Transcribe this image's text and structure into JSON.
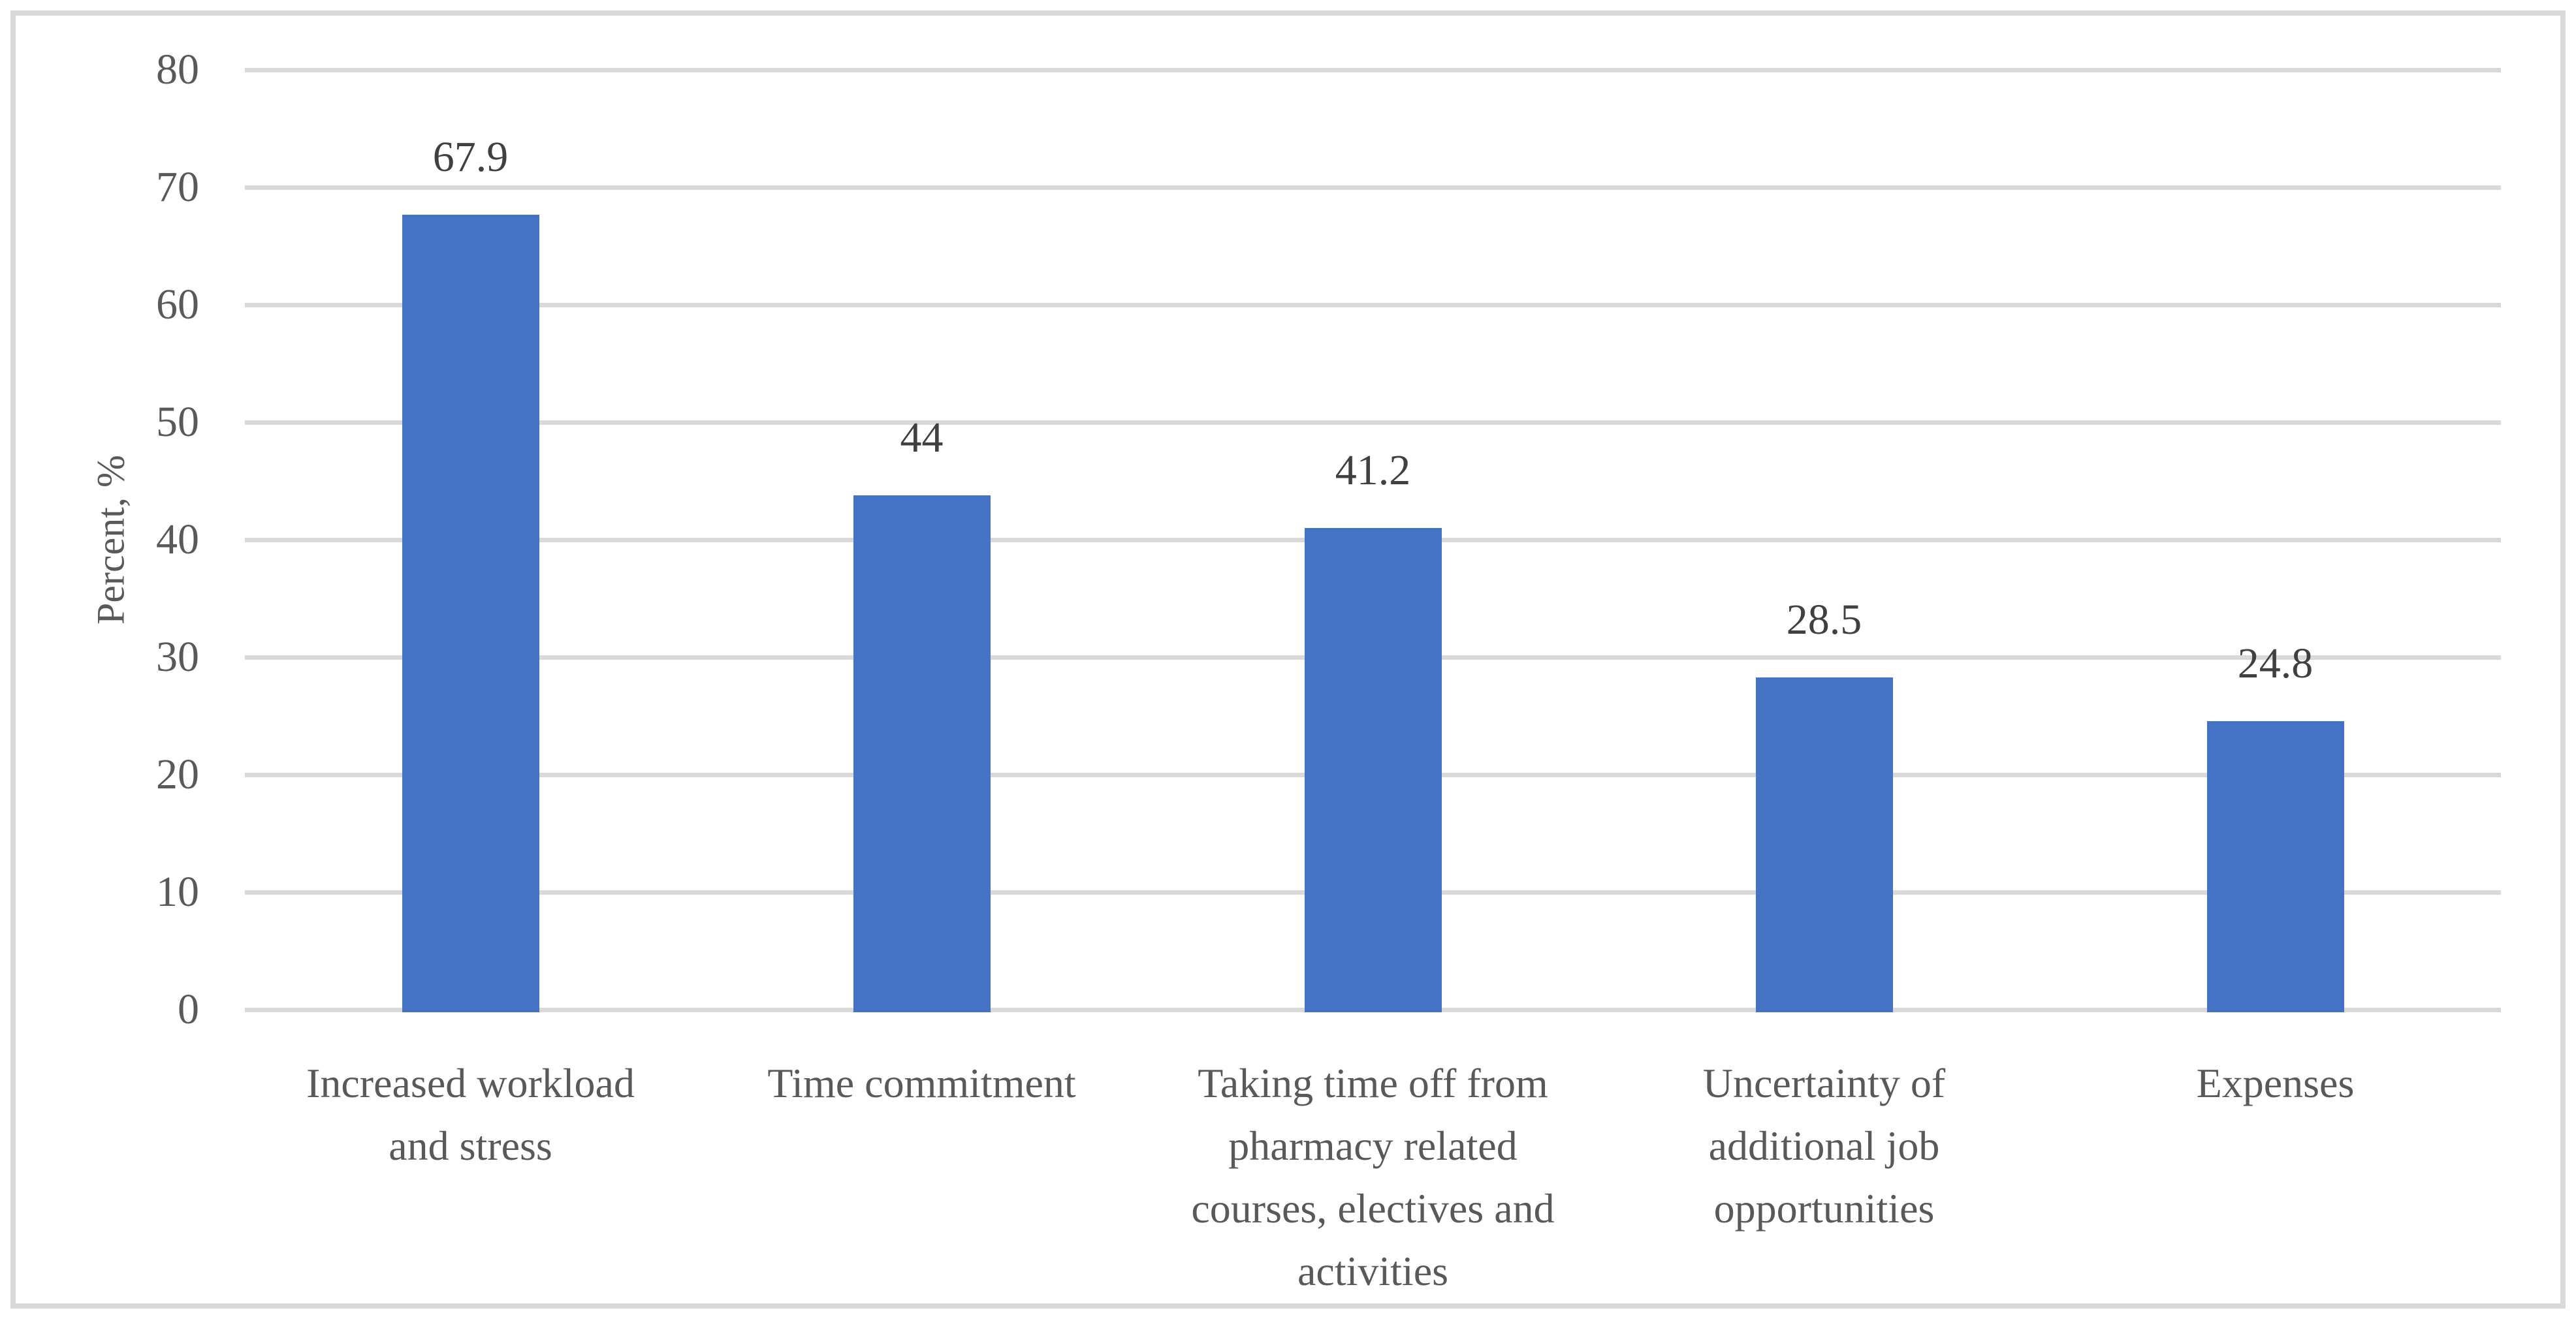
{
  "chart_data": {
    "type": "bar",
    "title": "",
    "xlabel": "",
    "ylabel": "Percent, %",
    "categories": [
      "Increased workload and stress",
      "Time commitment",
      "Taking time off from pharmacy related courses, electives and activities",
      "Uncertainty of additional job opportunities",
      "Expenses"
    ],
    "values": [
      67.9,
      44,
      41.2,
      28.5,
      24.8
    ],
    "data_labels": [
      "67.9",
      "44",
      "41.2",
      "28.5",
      "24.8"
    ],
    "ylim": [
      0,
      80
    ],
    "ytick_interval": 10,
    "yticks": [
      "80",
      "70",
      "60",
      "50",
      "40",
      "30",
      "20",
      "10",
      "0"
    ],
    "grid": "horizontal",
    "legend": "none",
    "bar_color": "#4472C4"
  },
  "category_lines": [
    [
      "Increased workload",
      "and stress"
    ],
    [
      "Time commitment"
    ],
    [
      "Taking time off from",
      "pharmacy related",
      "courses, electives and",
      "activities"
    ],
    [
      "Uncertainty of",
      "additional job",
      "opportunities"
    ],
    [
      "Expenses"
    ]
  ],
  "colors": {
    "bar": "#4472C4",
    "gridline": "#D9D9D9",
    "frame_border": "#D9D9D9",
    "tick_text": "#595959",
    "data_label_text": "#404040",
    "category_text": "#595959"
  }
}
